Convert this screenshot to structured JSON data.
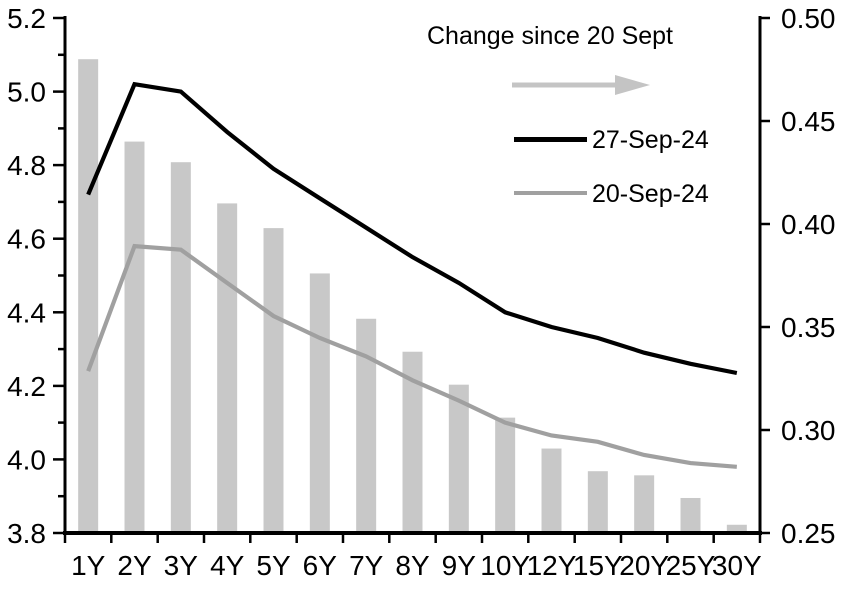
{
  "legend": {
    "title": "Change since 20 Sept",
    "series": [
      {
        "label": "27-Sep-24",
        "color": "#000000"
      },
      {
        "label": "20-Sep-24",
        "color": "#a0a0a0"
      }
    ],
    "arrow_color": "#c4c4c4"
  },
  "colors": {
    "bar": "#c8c8c8",
    "axis": "#000000",
    "background": "#ffffff"
  },
  "chart_data": {
    "type": "combo-bar-line",
    "categories": [
      "1Y",
      "2Y",
      "3Y",
      "4Y",
      "5Y",
      "6Y",
      "7Y",
      "8Y",
      "9Y",
      "10Y",
      "12Y",
      "15Y",
      "20Y",
      "25Y",
      "30Y"
    ],
    "series": [
      {
        "name": "Change since 20 Sept",
        "type": "bar",
        "axis": "right",
        "color": "#c8c8c8",
        "values": [
          0.48,
          0.44,
          0.43,
          0.41,
          0.398,
          0.376,
          0.354,
          0.338,
          0.322,
          0.306,
          0.291,
          0.28,
          0.278,
          0.267,
          0.254
        ]
      },
      {
        "name": "27-Sep-24",
        "type": "line",
        "axis": "left",
        "color": "#000000",
        "values": [
          4.72,
          5.02,
          5.0,
          4.89,
          4.79,
          4.71,
          4.63,
          4.55,
          4.48,
          4.4,
          4.36,
          4.33,
          4.29,
          4.26,
          4.235
        ]
      },
      {
        "name": "20-Sep-24",
        "type": "line",
        "axis": "left",
        "color": "#a0a0a0",
        "values": [
          4.24,
          4.58,
          4.57,
          4.48,
          4.39,
          4.33,
          4.28,
          4.215,
          4.16,
          4.1,
          4.065,
          4.048,
          4.012,
          3.99,
          3.98
        ]
      }
    ],
    "left_axis": {
      "min": 3.8,
      "max": 5.2,
      "ticks": [
        3.8,
        4.0,
        4.2,
        4.4,
        4.6,
        4.8,
        5.0,
        5.2
      ],
      "tick_labels": [
        "3.8",
        "4.0",
        "4.2",
        "4.4",
        "4.6",
        "4.8",
        "5.0",
        "5.2"
      ],
      "minor_step": 0.1
    },
    "right_axis": {
      "min": 0.25,
      "max": 0.5,
      "ticks": [
        0.25,
        0.3,
        0.35,
        0.4,
        0.45,
        0.5
      ],
      "tick_labels": [
        "0.25",
        "0.30",
        "0.35",
        "0.40",
        "0.45",
        "0.50"
      ]
    },
    "grid": false,
    "legend_position": "inside-top-right"
  }
}
